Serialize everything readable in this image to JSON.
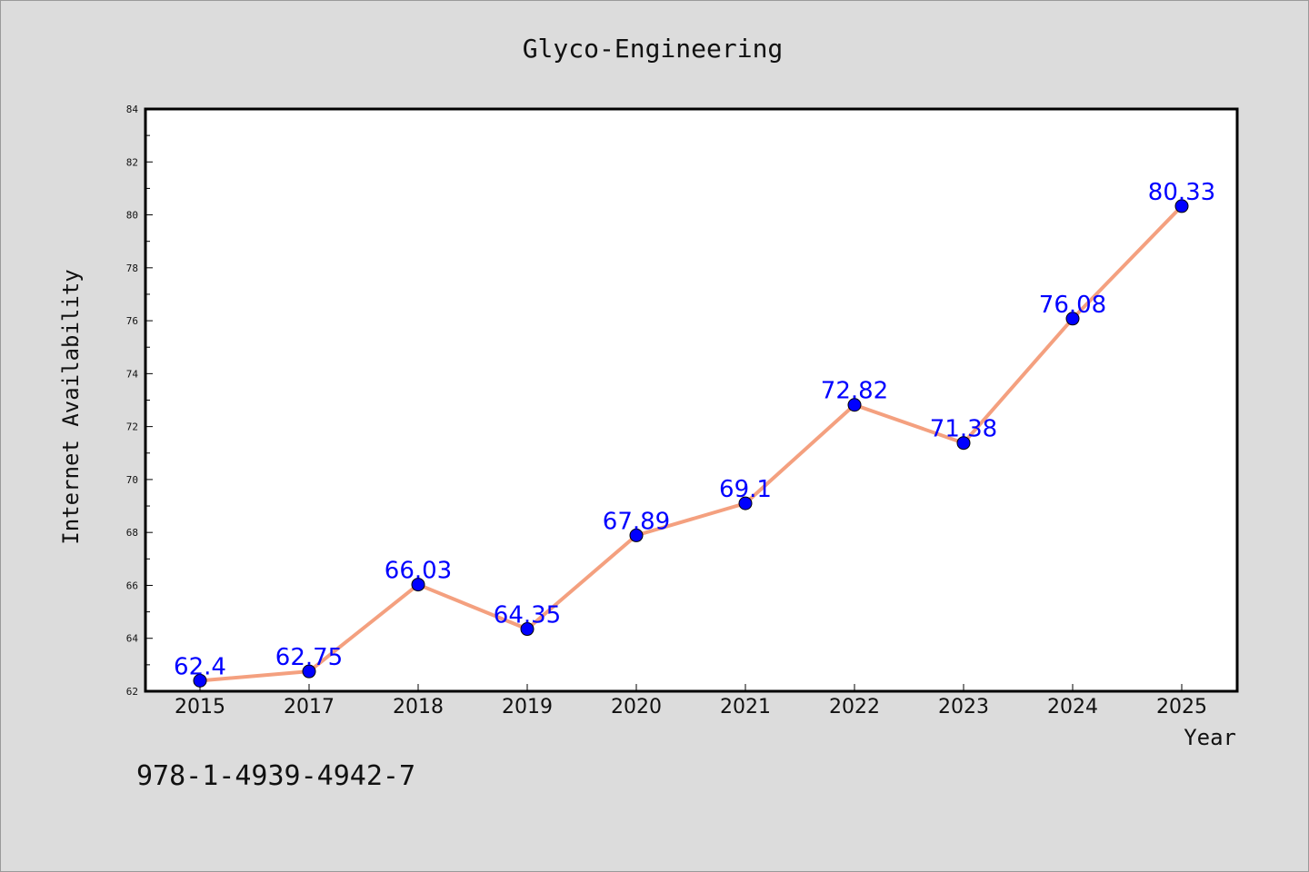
{
  "chart_data": {
    "type": "line",
    "title": "Glyco-Engineering",
    "xlabel": "Year",
    "ylabel": "Internet Availability",
    "categories": [
      "2015",
      "2017",
      "2018",
      "2019",
      "2020",
      "2021",
      "2022",
      "2023",
      "2024",
      "2025"
    ],
    "series": [
      {
        "values": [
          62.4,
          62.75,
          66.03,
          64.35,
          67.89,
          69.1,
          72.82,
          71.38,
          76.08,
          80.33
        ],
        "labels": [
          "62.4",
          "62.75",
          "66.03",
          "64.35",
          "67.89",
          "69.1",
          "72.82",
          "71.38",
          "76.08",
          "80.33"
        ],
        "line_color": "#f4a07f",
        "marker_color": "#0000ff",
        "label_color": "#0000ff"
      }
    ],
    "ylim": [
      62,
      84
    ],
    "yticks": [
      "62",
      "64",
      "66",
      "68",
      "70",
      "72",
      "74",
      "76",
      "78",
      "80",
      "82",
      "84"
    ],
    "grid": false,
    "legend": "none"
  },
  "footer": {
    "isbn": "978-1-4939-4942-7"
  },
  "colors": {
    "background": "#dcdcdc",
    "plot_background": "#ffffff",
    "axis": "#000000"
  }
}
